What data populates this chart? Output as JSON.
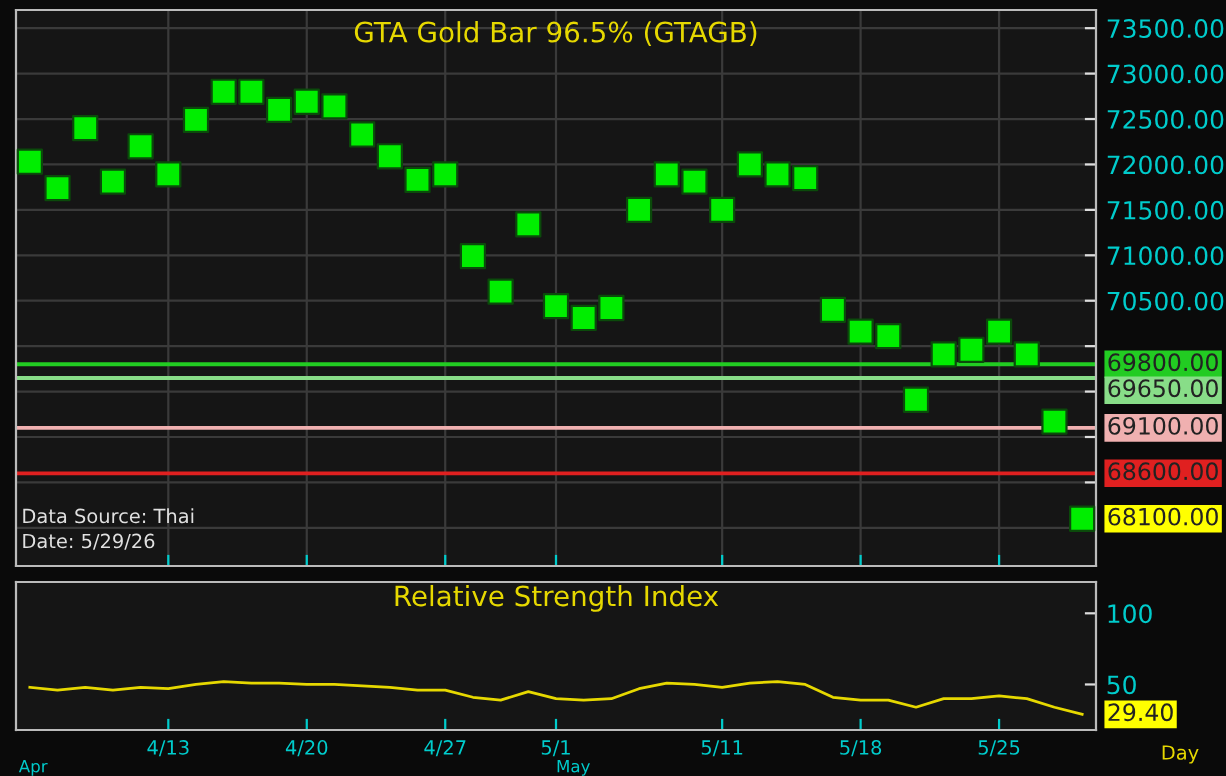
{
  "chart_data": [
    {
      "type": "scatter",
      "title": "GTA Gold Bar 96.5% (GTAGB)",
      "marker": "square",
      "grid": true,
      "tick_labels": "y",
      "categories": [
        null,
        null,
        null,
        null,
        null,
        null,
        null,
        null,
        null,
        null,
        null,
        null,
        null,
        null,
        null,
        null,
        null,
        null,
        null,
        null,
        null,
        null,
        null,
        null,
        null,
        null,
        null,
        null,
        null,
        null,
        null,
        null,
        null,
        null,
        null,
        null,
        null,
        null,
        null
      ],
      "series": [
        {
          "color": "#00ee00",
          "values": [
            72030,
            71740,
            72400,
            71810,
            72200,
            71890,
            72490,
            72800,
            72800,
            72600,
            72690,
            72640,
            72330,
            72090,
            71830,
            71890,
            70990,
            70600,
            71340,
            70440,
            70310,
            70420,
            71500,
            71890,
            71810,
            71500,
            72000,
            71890,
            71850,
            70400,
            70160,
            70110,
            69410,
            69910,
            69960,
            70160,
            69910,
            69170,
            68100
          ]
        }
      ],
      "ylim": [
        67580,
        73700
      ],
      "yticks": [
        {
          "value": 68000,
          "label": null
        },
        {
          "value": 68500,
          "label": null
        },
        {
          "value": 69000,
          "label": null
        },
        {
          "value": 69500,
          "label": null
        },
        {
          "value": 70000,
          "label": null
        },
        {
          "value": 70500,
          "label": "70500.00"
        },
        {
          "value": 71000,
          "label": "71000.00"
        },
        {
          "value": 71500,
          "label": "71500.00"
        },
        {
          "value": 72000,
          "label": "72000.00"
        },
        {
          "value": 72500,
          "label": "72500.00"
        },
        {
          "value": 73000,
          "label": "73000.00"
        },
        {
          "value": 73500,
          "label": "73500.00"
        }
      ],
      "ref_lines": [
        {
          "axis": "y",
          "value": 69800,
          "label": "69800.00",
          "color": "#22cc22"
        },
        {
          "axis": "y",
          "value": 69650,
          "label": "69650.00",
          "color": "#88dd88"
        },
        {
          "axis": "y",
          "value": 69100,
          "label": "69100.00",
          "color": "#f0b0b0"
        },
        {
          "axis": "y",
          "value": 68600,
          "label": "68600.00",
          "color": "#e02020"
        }
      ],
      "annotations": [
        "Data Source: Thai",
        "Date: 5/29/26",
        "68100.00"
      ]
    },
    {
      "type": "line",
      "title": "Relative Strength Index",
      "categories": [
        null,
        null,
        null,
        null,
        null,
        "4/13",
        null,
        null,
        null,
        null,
        "4/20",
        null,
        null,
        null,
        null,
        "4/27",
        null,
        null,
        null,
        "5/1",
        null,
        null,
        null,
        null,
        null,
        "5/11",
        null,
        null,
        null,
        null,
        "5/18",
        null,
        null,
        null,
        null,
        "5/25",
        null,
        null,
        null
      ],
      "series": [
        {
          "color": "#e6d800",
          "values": [
            48,
            46,
            48,
            46,
            48,
            47,
            50,
            52,
            51,
            51,
            50,
            50,
            49,
            48,
            46,
            46,
            41,
            39,
            45,
            40,
            39,
            40,
            47,
            51,
            50,
            48,
            51,
            52,
            50,
            41,
            39,
            39,
            34,
            40,
            40,
            42,
            40,
            34,
            29
          ]
        }
      ],
      "ylim": [
        18,
        122
      ],
      "yticks": [
        50,
        100
      ],
      "annotations": [
        "Apr",
        "May",
        "Day",
        "29.40"
      ]
    }
  ]
}
